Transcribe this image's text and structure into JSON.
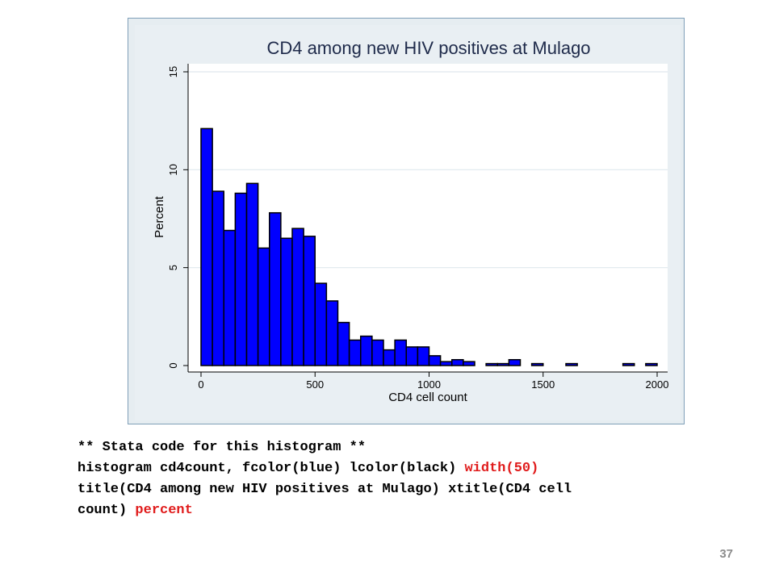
{
  "chart_data": {
    "type": "bar",
    "title": "CD4 among new HIV positives at Mulago",
    "xlabel": "CD4 cell count",
    "ylabel": "Percent",
    "bin_width": 50,
    "bin_start": 0,
    "xlim": [
      0,
      2000
    ],
    "ylim": [
      0,
      15
    ],
    "x_ticks": [
      "0",
      "500",
      "1000",
      "1500",
      "2000"
    ],
    "y_ticks": [
      "0",
      "5",
      "10",
      "15"
    ],
    "grid": true,
    "bar_fill": "#0000ff",
    "bar_outline": "#000000",
    "values": [
      12.1,
      8.9,
      6.9,
      8.8,
      9.3,
      6.0,
      7.8,
      6.5,
      7.0,
      6.6,
      4.2,
      3.3,
      2.2,
      1.3,
      1.5,
      1.3,
      0.8,
      1.3,
      0.95,
      0.95,
      0.5,
      0.2,
      0.3,
      0.2,
      0.0,
      0.1,
      0.1,
      0.3,
      0.0,
      0.1,
      0.0,
      0.0,
      0.1,
      0.0,
      0.0,
      0.0,
      0.0,
      0.1,
      0.0,
      0.1
    ]
  },
  "code": {
    "line1": "** Stata code for this histogram **",
    "line2_a": "histogram cd4count, fcolor(blue) lcolor(black) ",
    "line2_b": "width(50)",
    "line3": "title(CD4 among new HIV positives at Mulago) xtitle(CD4 cell",
    "line4_a": "count) ",
    "line4_b": "percent"
  },
  "page_number": "37"
}
